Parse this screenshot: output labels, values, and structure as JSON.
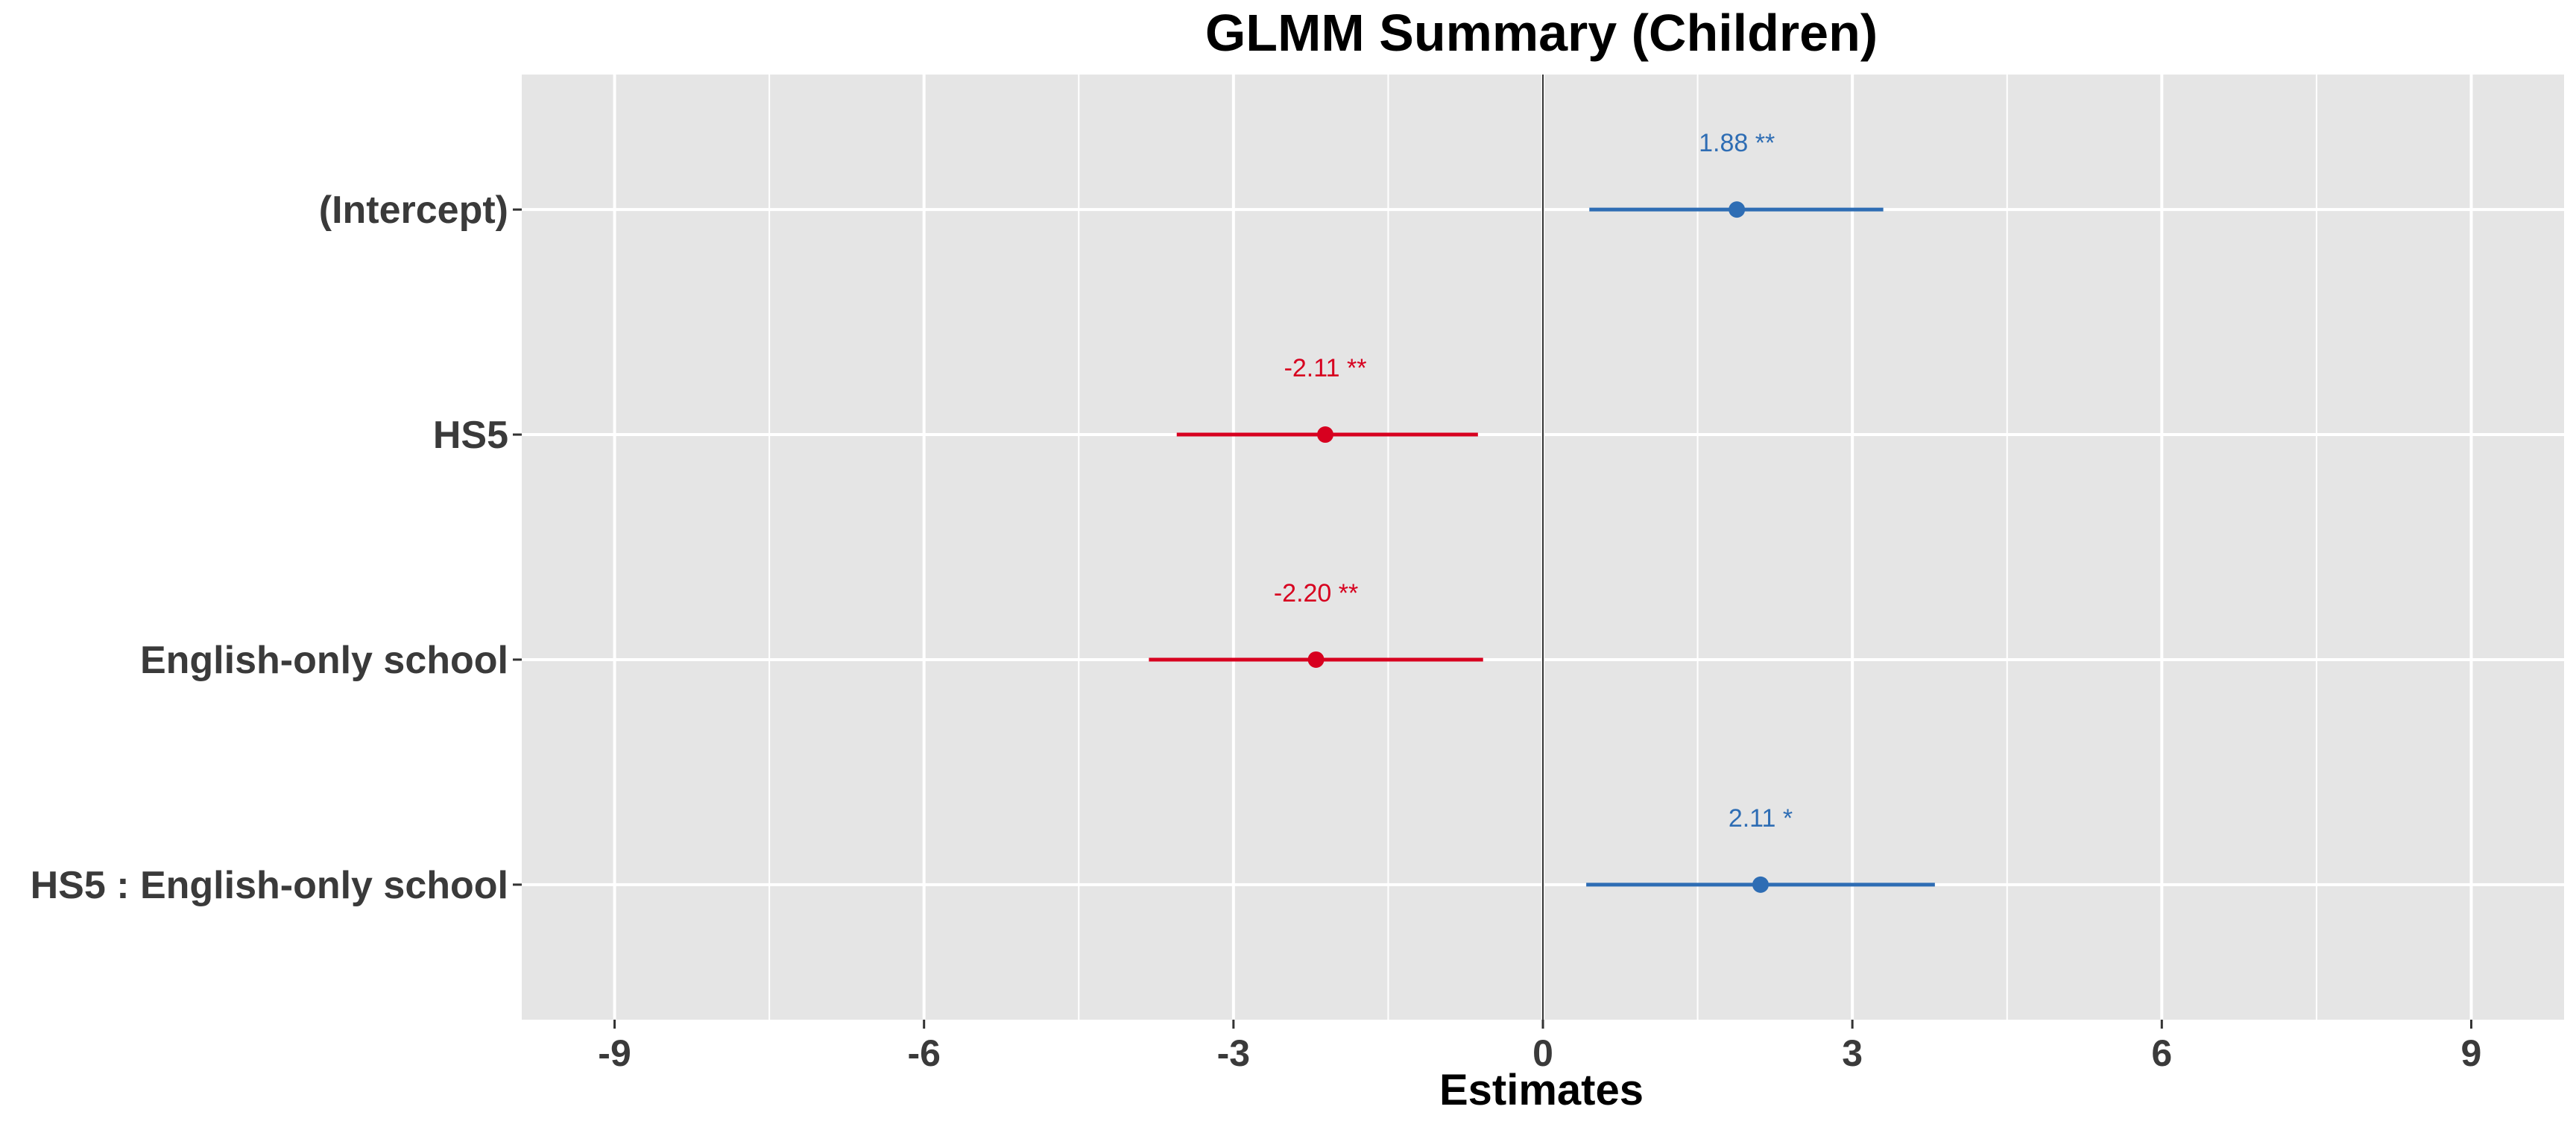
{
  "chart_data": {
    "type": "scatter",
    "title": "GLMM Summary (Children)",
    "xlabel": "Estimates",
    "ylabel": "",
    "xlim": [
      -9.9,
      9.9
    ],
    "xticks": [
      -9,
      -6,
      -3,
      0,
      3,
      6,
      9
    ],
    "xtick_labels": [
      "-9",
      "-6",
      "-3",
      "0",
      "3",
      "6",
      "9"
    ],
    "grid": true,
    "reference_line": 0,
    "terms": [
      {
        "term": "(Intercept)",
        "estimate": 1.88,
        "ci_low": 0.45,
        "ci_high": 3.3,
        "label": "1.88 **",
        "direction": "positive"
      },
      {
        "term": "HS5",
        "estimate": -2.11,
        "ci_low": -3.55,
        "ci_high": -0.63,
        "label": "-2.11 **",
        "direction": "negative"
      },
      {
        "term": "English-only school",
        "estimate": -2.2,
        "ci_low": -3.82,
        "ci_high": -0.58,
        "label": "-2.20 **",
        "direction": "negative"
      },
      {
        "term": "HS5 : English-only school",
        "estimate": 2.11,
        "ci_low": 0.42,
        "ci_high": 3.8,
        "label": "2.11 *",
        "direction": "positive"
      }
    ],
    "colors": {
      "positive": "#2e6db4",
      "negative": "#d7001f",
      "panel": "#e5e5e5",
      "grid": "#ffffff",
      "reference": "#333333"
    }
  }
}
